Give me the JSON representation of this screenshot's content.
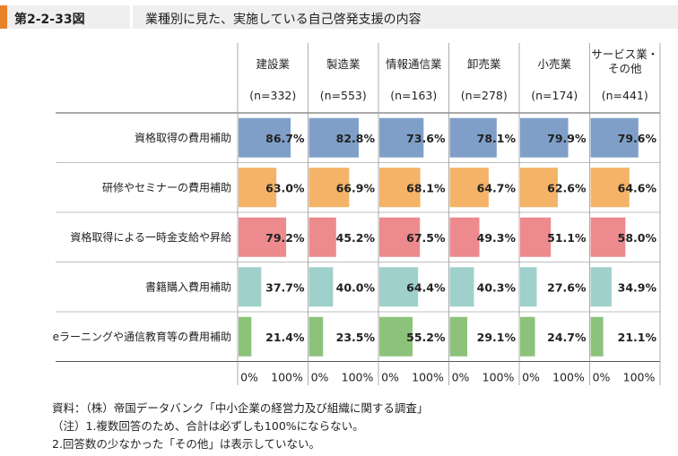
{
  "header": {
    "figure_number": "第2-2-33図",
    "title": "業種別に見た、実施している自己啓発支援の内容"
  },
  "chart_data": {
    "type": "bar",
    "orientation": "horizontal",
    "panels": [
      {
        "label_lines": [
          "建設業"
        ],
        "n": "(n=332)"
      },
      {
        "label_lines": [
          "製造業"
        ],
        "n": "(n=553)"
      },
      {
        "label_lines": [
          "情報通信業"
        ],
        "n": "(n=163)"
      },
      {
        "label_lines": [
          "卸売業"
        ],
        "n": "(n=278)"
      },
      {
        "label_lines": [
          "小売業"
        ],
        "n": "(n=174)"
      },
      {
        "label_lines": [
          "サービス業・",
          "その他"
        ],
        "n": "(n=441)"
      }
    ],
    "categories": [
      "資格取得の費用補助",
      "研修やセミナーの費用補助",
      "資格取得による一時金支給や昇給",
      "書籍購入費用補助",
      "eラーニングや通信教育等の費用補助"
    ],
    "category_colors": [
      "#7f9fc8",
      "#f4b366",
      "#ec8a8e",
      "#9fd0cc",
      "#8cc27a"
    ],
    "values": [
      [
        86.7,
        82.8,
        73.6,
        78.1,
        79.9,
        79.6
      ],
      [
        63.0,
        66.9,
        68.1,
        64.7,
        62.6,
        64.6
      ],
      [
        79.2,
        45.2,
        67.5,
        49.3,
        51.1,
        58.0
      ],
      [
        37.7,
        40.0,
        64.4,
        40.3,
        27.6,
        34.9
      ],
      [
        21.4,
        23.5,
        55.2,
        29.1,
        24.7,
        21.1
      ]
    ],
    "value_labels": [
      [
        "86.7%",
        "82.8%",
        "73.6%",
        "78.1%",
        "79.9%",
        "79.6%"
      ],
      [
        "63.0%",
        "66.9%",
        "68.1%",
        "64.7%",
        "62.6%",
        "64.6%"
      ],
      [
        "79.2%",
        "45.2%",
        "67.5%",
        "49.3%",
        "51.1%",
        "58.0%"
      ],
      [
        "37.7%",
        "40.0%",
        "64.4%",
        "40.3%",
        "27.6%",
        "34.9%"
      ],
      [
        "21.4%",
        "23.5%",
        "55.2%",
        "29.1%",
        "24.7%",
        "21.1%"
      ]
    ],
    "xlim": [
      0,
      100
    ],
    "tick_labels": [
      "0%",
      "100%"
    ]
  },
  "notes": {
    "source": "資料：（株）帝国データバンク「中小企業の経営力及び組織に関する調査」",
    "note1": "（注）1.複数回答のため、合計は必ずしも100%にならない。",
    "note2": "2.回答数の少なかった「その他」は表示していない。"
  }
}
